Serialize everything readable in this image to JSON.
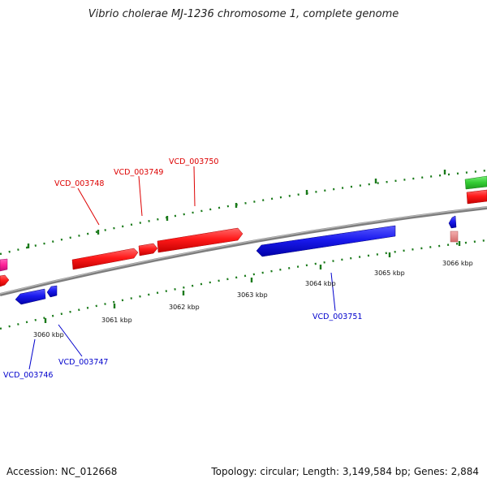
{
  "title": "Vibrio cholerae MJ-1236 chromosome 1, complete genome",
  "footer": {
    "accession": "Accession: NC_012668",
    "summary": "Topology: circular; Length: 3,149,584 bp; Genes: 2,884"
  },
  "colors": {
    "backbone": "#8a8a8a",
    "forward_gene": "#ff1a1a",
    "reverse_gene": "#1a1aee",
    "forward_label": "#dd0000",
    "reverse_label": "#0000cc",
    "tick": "#1a7a1a",
    "tick_label": "#111111",
    "green_gene": "#33cc33",
    "pink_gene": "#ff2299",
    "faded_gene": "#e88a8a"
  },
  "scale_labels": [
    "3060 kbp",
    "3061 kbp",
    "3062 kbp",
    "3063 kbp",
    "3064 kbp",
    "3065 kbp",
    "3066 kbp"
  ],
  "forward_gene_labels": [
    "VCD_003748",
    "VCD_003749",
    "VCD_003750"
  ],
  "reverse_gene_labels": [
    "VCD_003746",
    "VCD_003747",
    "VCD_003751"
  ]
}
